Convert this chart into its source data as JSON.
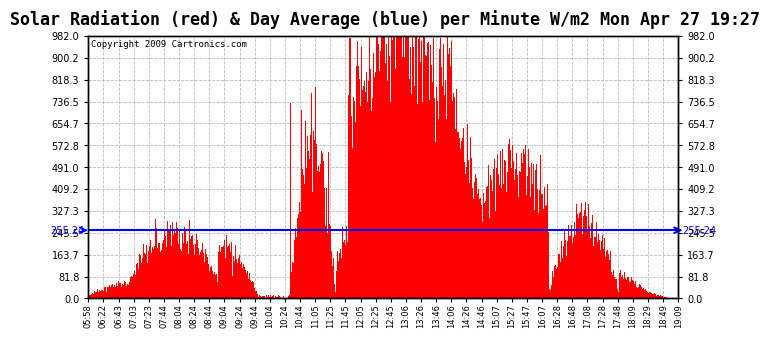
{
  "title": "Solar Radiation (red) & Day Average (blue) per Minute W/m2 Mon Apr 27 19:27",
  "copyright": "Copyright 2009 Cartronics.com",
  "avg_value": 255.24,
  "ylim": [
    0.0,
    982.0
  ],
  "yticks": [
    0.0,
    81.8,
    163.7,
    245.5,
    327.3,
    409.2,
    491.0,
    572.8,
    654.7,
    736.5,
    818.3,
    900.2,
    982.0
  ],
  "ytick_labels": [
    "0.0",
    "81.8",
    "163.7",
    "245.5",
    "327.3",
    "409.2",
    "491.0",
    "572.8",
    "654.7",
    "736.5",
    "818.3",
    "900.2",
    "982.0"
  ],
  "bar_color": "#FF0000",
  "avg_line_color": "#0000FF",
  "background_color": "#FFFFFF",
  "grid_color": "#BBBBBB",
  "title_fontsize": 12,
  "x_tick_labels": [
    "05:58",
    "06:22",
    "06:43",
    "07:03",
    "07:23",
    "07:44",
    "08:04",
    "08:24",
    "08:44",
    "09:04",
    "09:24",
    "09:44",
    "10:04",
    "10:24",
    "10:44",
    "11:05",
    "11:25",
    "11:45",
    "12:05",
    "12:25",
    "12:45",
    "13:06",
    "13:26",
    "13:46",
    "14:06",
    "14:26",
    "14:46",
    "15:07",
    "15:27",
    "15:47",
    "16:07",
    "16:28",
    "16:48",
    "17:08",
    "17:28",
    "17:48",
    "18:09",
    "18:29",
    "18:49",
    "19:09"
  ]
}
